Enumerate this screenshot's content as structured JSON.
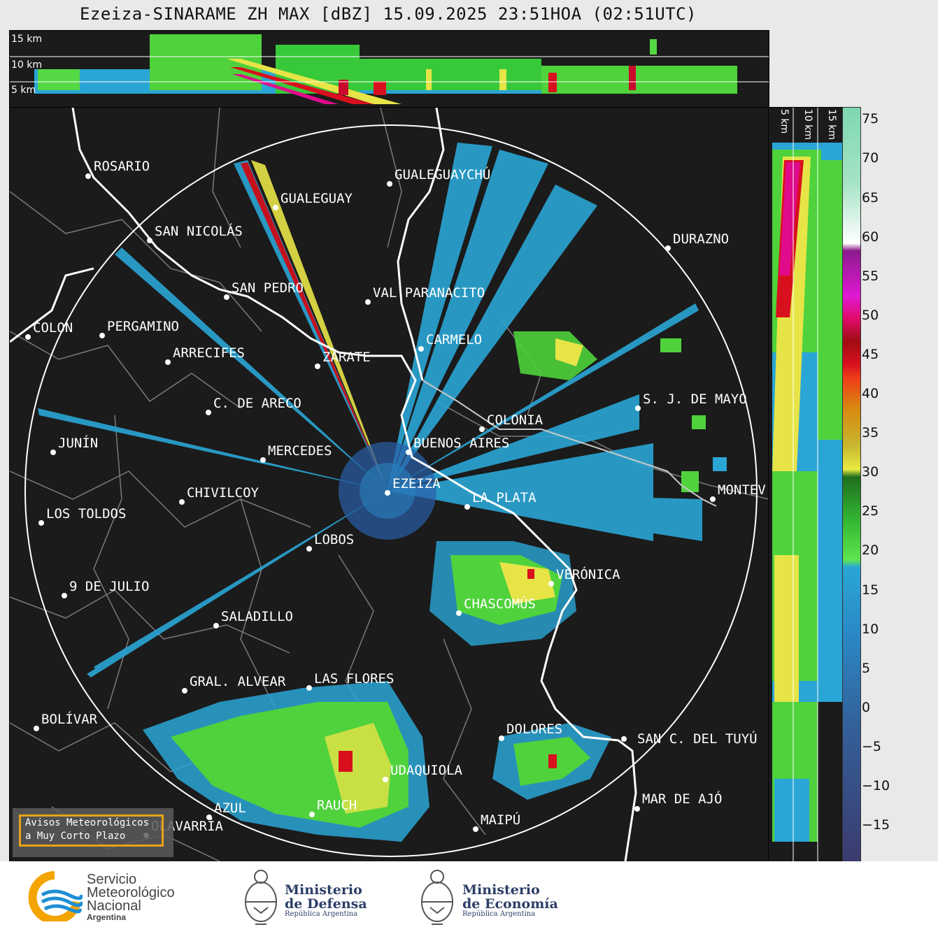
{
  "title": "Ezeiza-SINARAME ZH MAX [dBZ] 15.09.2025 23:51HOA (02:51UTC)",
  "top_altitudes": [
    "15 km",
    "10 km",
    "5 km"
  ],
  "side_altitudes": [
    "5 km",
    "10 km",
    "15 km"
  ],
  "cities": [
    "ROSARIO",
    "GUALEGUAYCHÚ",
    "GUALEGUAY",
    "SAN NICOLÁS",
    "DURAZNO",
    "SAN PEDRO",
    "VAL PARANACITO",
    "COLON",
    "PERGAMINO",
    "CARMELO",
    "ARRECIFES",
    "ZÁRATE",
    "C. DE ARECO",
    "S. J. DE MAYO",
    "COLONIA",
    "JUNÍN",
    "BUENOS AIRES",
    "MERCEDES",
    "EZEIZA",
    "CHIVILCOY",
    "MONTEV",
    "LA PLATA",
    "LOS TOLDOS",
    "LOBOS",
    "VERÓNICA",
    "9 DE JULIO",
    "CHASCOMÚS",
    "SALADILLO",
    "GRAL. ALVEAR",
    "LAS FLORES",
    "BOLÍVAR",
    "DOLORES",
    "SAN C. DEL TUYÚ",
    "UDAQUIOLA",
    "AZUL",
    "MAR DE AJÓ",
    "RAUCH",
    "MAIPÚ",
    "OLAVARRÍA"
  ],
  "colorbar": {
    "ticks": [
      "75",
      "70",
      "65",
      "60",
      "55",
      "50",
      "45",
      "40",
      "35",
      "30",
      "25",
      "20",
      "15",
      "10",
      "5",
      "0",
      "−5",
      "−10",
      "−15"
    ],
    "min": -19,
    "max": 76.5
  },
  "alert": {
    "line1": "Avisos Meteorológicos",
    "line2": "a Muy Corto Plazo"
  },
  "footer": {
    "smn_line1": "Servicio",
    "smn_line2": "Meteorológico",
    "smn_line3": "Nacional",
    "smn_line4": "Argentina",
    "defensa_line1": "Ministerio",
    "defensa_line2": "de Defensa",
    "defensa_sub": "República Argentina",
    "economia_line1": "Ministerio",
    "economia_line2": "de Economía",
    "economia_sub": "República Argentina"
  },
  "colors": {
    "background": "#1b1b1b",
    "range_ring": "#ffffff",
    "coast": "#ffffff",
    "borders": "#7a7a7a",
    "alert_border": "#e8a317",
    "smn_orange": "#f4a400",
    "smn_blue": "#1e8fd6"
  }
}
